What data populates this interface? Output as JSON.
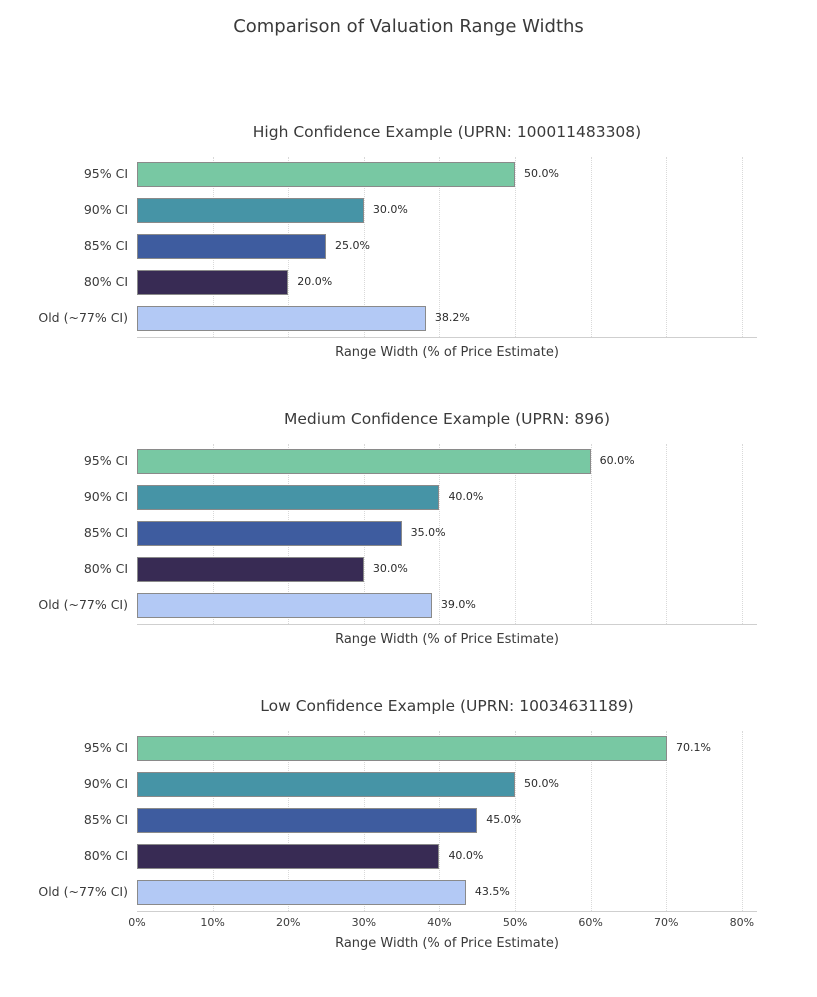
{
  "page": {
    "background": "#ffffff"
  },
  "main_title": "Comparison of Valuation Range Widths",
  "axis": {
    "xlabel": "Range Width (% of Price Estimate)",
    "xlim": [
      0,
      82
    ],
    "tick_values": [
      0,
      10,
      20,
      30,
      40,
      50,
      60,
      70,
      80
    ],
    "tick_labels": [
      "0%",
      "10%",
      "20%",
      "30%",
      "40%",
      "50%",
      "60%",
      "70%",
      "80%"
    ],
    "grid": "dotted vertical"
  },
  "bar_colors": [
    "#78c8a3",
    "#4694a6",
    "#3e5c9f",
    "#382b54",
    "#b3c9f5"
  ],
  "bar_edge_color": "#8a8a8a",
  "chart_data": [
    {
      "type": "bar",
      "orientation": "horizontal",
      "title": "High Confidence Example (UPRN: 100011483308)",
      "categories": [
        "95% CI",
        "90% CI",
        "85% CI",
        "80% CI",
        "Old (~77% CI)"
      ],
      "values": [
        50.0,
        30.0,
        25.0,
        20.0,
        38.2
      ],
      "labels": [
        "50.0%",
        "30.0%",
        "25.0%",
        "20.0%",
        "38.2%"
      ],
      "xlabel": "Range Width (% of Price Estimate)",
      "xlim": [
        0,
        82
      ],
      "show_tick_labels": false
    },
    {
      "type": "bar",
      "orientation": "horizontal",
      "title": "Medium Confidence Example (UPRN: 896)",
      "categories": [
        "95% CI",
        "90% CI",
        "85% CI",
        "80% CI",
        "Old (~77% CI)"
      ],
      "values": [
        60.0,
        40.0,
        35.0,
        30.0,
        39.0
      ],
      "labels": [
        "60.0%",
        "40.0%",
        "35.0%",
        "30.0%",
        "39.0%"
      ],
      "xlabel": "Range Width (% of Price Estimate)",
      "xlim": [
        0,
        82
      ],
      "show_tick_labels": false
    },
    {
      "type": "bar",
      "orientation": "horizontal",
      "title": "Low Confidence Example (UPRN: 10034631189)",
      "categories": [
        "95% CI",
        "90% CI",
        "85% CI",
        "80% CI",
        "Old (~77% CI)"
      ],
      "values": [
        70.1,
        50.0,
        45.0,
        40.0,
        43.5
      ],
      "labels": [
        "70.1%",
        "50.0%",
        "45.0%",
        "40.0%",
        "43.5%"
      ],
      "xlabel": "Range Width (% of Price Estimate)",
      "xlim": [
        0,
        82
      ],
      "show_tick_labels": true
    }
  ]
}
